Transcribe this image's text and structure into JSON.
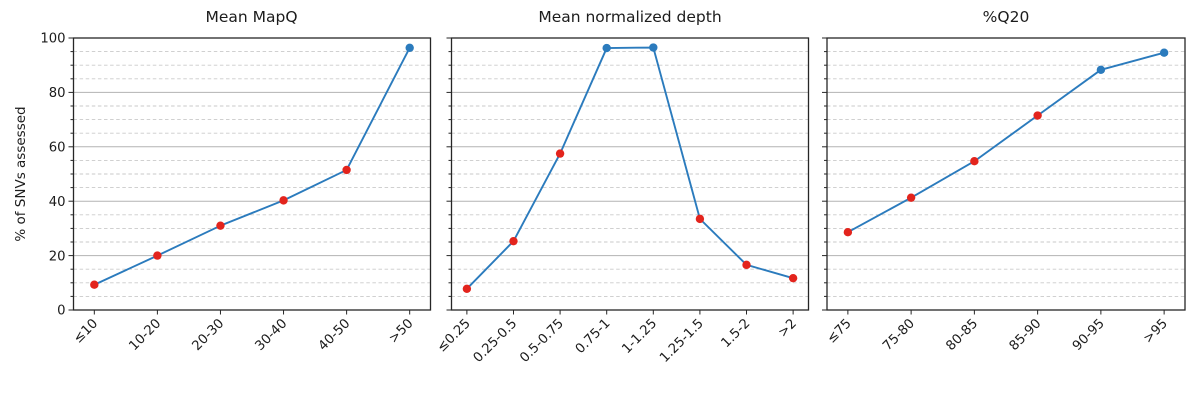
{
  "figure": {
    "ylabel": "% of SNVs assessed"
  },
  "style": {
    "background": "#ffffff",
    "line_color": "#2b7bbd",
    "marker_red": "#e3241d",
    "marker_blue": "#2b7bbd",
    "grid_major_color": "#b3b3b3",
    "grid_minor_color": "#c9c9c9",
    "axis_color": "#262626",
    "text_color": "#1c1c1c"
  },
  "chart_data": [
    {
      "type": "line",
      "title": "Mean MapQ",
      "categories": [
        "≤10",
        "10-20",
        "20-30",
        "30-40",
        "40-50",
        ">50"
      ],
      "values": [
        9.3,
        20.0,
        31.0,
        40.3,
        51.5,
        96.4
      ],
      "point_colors": [
        "red",
        "red",
        "red",
        "red",
        "red",
        "blue"
      ],
      "xlabel": "",
      "ylabel": "% of SNVs assessed",
      "ylim": [
        0,
        100
      ],
      "yticks": [
        0,
        20,
        40,
        60,
        80,
        100
      ],
      "minor_tick_step": 5,
      "grid": "major solid, minor dashed",
      "legend_position": "none",
      "x_tick_rotation": 45
    },
    {
      "type": "line",
      "title": "Mean normalized depth",
      "categories": [
        "≤0.25",
        "0.25-0.5",
        "0.5-0.75",
        "0.75-1",
        "1-1.25",
        "1.25-1.5",
        "1.5-2",
        ">2"
      ],
      "values": [
        7.8,
        25.3,
        57.5,
        96.3,
        96.5,
        33.5,
        16.6,
        11.7
      ],
      "point_colors": [
        "red",
        "red",
        "red",
        "blue",
        "blue",
        "red",
        "red",
        "red"
      ],
      "xlabel": "",
      "ylabel": "% of SNVs assessed",
      "ylim": [
        0,
        100
      ],
      "yticks": [
        0,
        20,
        40,
        60,
        80,
        100
      ],
      "minor_tick_step": 5,
      "grid": "major solid, minor dashed",
      "legend_position": "none",
      "x_tick_rotation": 45
    },
    {
      "type": "line",
      "title": "%Q20",
      "categories": [
        "≤75",
        "75-80",
        "80-85",
        "85-90",
        "90-95",
        ">95"
      ],
      "values": [
        28.6,
        41.3,
        54.7,
        71.5,
        88.3,
        94.6
      ],
      "point_colors": [
        "red",
        "red",
        "red",
        "red",
        "blue",
        "blue"
      ],
      "xlabel": "",
      "ylabel": "% of SNVs assessed",
      "ylim": [
        0,
        100
      ],
      "yticks": [
        0,
        20,
        40,
        60,
        80,
        100
      ],
      "minor_tick_step": 5,
      "grid": "major solid, minor dashed",
      "legend_position": "none",
      "x_tick_rotation": 45
    }
  ]
}
